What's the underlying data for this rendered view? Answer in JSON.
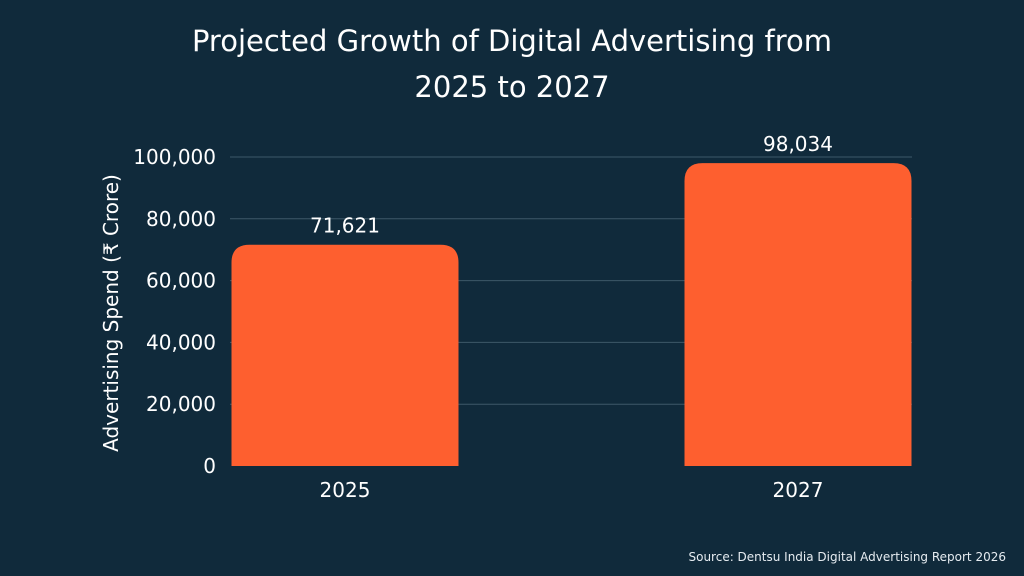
{
  "chart_data": {
    "type": "bar",
    "title_lines": [
      "Projected Growth of Digital Advertising from",
      "2025 to 2027"
    ],
    "categories": [
      "2025",
      "2027"
    ],
    "values": [
      71621,
      98034
    ],
    "value_labels": [
      "71,621",
      "98,034"
    ],
    "xlabel": "",
    "ylabel": "Advertising Spend (₹ Crore)",
    "ylim": [
      0,
      100000
    ],
    "yticks": [
      0,
      20000,
      40000,
      60000,
      80000,
      100000
    ],
    "ytick_labels": [
      "0",
      "20,000",
      "40,000",
      "60,000",
      "80,000",
      "100,000"
    ],
    "grid": true,
    "legend": "none"
  },
  "source": "Source: Dentsu India Digital Advertising Report 2026",
  "colors": {
    "background": "#102a3b",
    "bar": "#fe5f2f",
    "text": "#ffffff",
    "grid": "#3d5869"
  }
}
